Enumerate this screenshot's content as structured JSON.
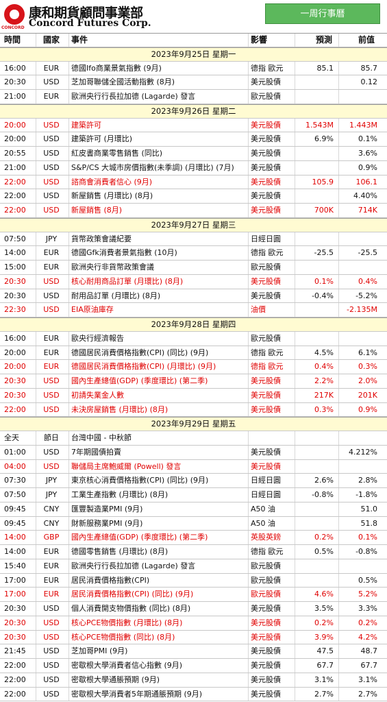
{
  "header": {
    "logo_small": "CONCORD",
    "logo_cn": "康和期貨顧問事業部",
    "logo_en": "Concord Futures Corp.",
    "button": "一周行事曆"
  },
  "columns": [
    "時間",
    "國家",
    "事件",
    "影響",
    "預測",
    "前值"
  ],
  "days": [
    {
      "date": "2023年9月25日 星期一",
      "rows": [
        {
          "time": "16:00",
          "country": "EUR",
          "event": "德國Ifo商業景氣指數 (9月)",
          "impact": "德指 歐元",
          "forecast": "85.1",
          "previous": "85.7"
        },
        {
          "time": "20:30",
          "country": "USD",
          "event": "芝加哥聯儲全國活動指數 (8月)",
          "impact": "美元股債",
          "previous": "0.12"
        },
        {
          "time": "21:00",
          "country": "EUR",
          "event": "歐洲央行行長拉加德 (Lagarde) 發言",
          "impact": "歐元股債"
        }
      ]
    },
    {
      "date": "2023年9月26日 星期二",
      "rows": [
        {
          "time": "20:00",
          "country": "USD",
          "event": "建築許可",
          "impact": "美元股債",
          "forecast": "1.543M",
          "previous": "1.443M",
          "highlight": true
        },
        {
          "time": "20:00",
          "country": "USD",
          "event": "建築許可 (月環比)",
          "impact": "美元股債",
          "forecast": "6.9%",
          "previous": "0.1%"
        },
        {
          "time": "20:55",
          "country": "USD",
          "event": "紅皮書商業零售銷售 (同比)",
          "impact": "美元股債",
          "previous": "3.6%"
        },
        {
          "time": "21:00",
          "country": "USD",
          "event": "S&P/CS 大城市房價指數(未季調) (月環比) (7月)",
          "impact": "美元股債",
          "previous": "0.9%"
        },
        {
          "time": "22:00",
          "country": "USD",
          "event": "諮商會消費者信心 (9月)",
          "impact": "美元股債",
          "forecast": "105.9",
          "previous": "106.1",
          "highlight": true
        },
        {
          "time": "22:00",
          "country": "USD",
          "event": "新屋銷售 (月環比) (8月)",
          "impact": "美元股債",
          "previous": "4.40%"
        },
        {
          "time": "22:00",
          "country": "USD",
          "event": "新屋銷售 (8月)",
          "impact": "美元股債",
          "forecast": "700K",
          "previous": "714K",
          "highlight": true
        }
      ]
    },
    {
      "date": "2023年9月27日 星期三",
      "rows": [
        {
          "time": "07:50",
          "country": "JPY",
          "event": "貨幣政策會議紀要",
          "impact": "日經日圓"
        },
        {
          "time": "14:00",
          "country": "EUR",
          "event": "德國Gfk消費者景氣指數 (10月)",
          "impact": "德指 歐元",
          "forecast": "-25.5",
          "previous": "-25.5"
        },
        {
          "time": "15:00",
          "country": "EUR",
          "event": "歐洲央行非貨幣政策會議",
          "impact": "歐元股債"
        },
        {
          "time": "20:30",
          "country": "USD",
          "event": "核心耐用商品訂單 (月環比) (8月)",
          "impact": "美元股債",
          "forecast": "0.1%",
          "previous": "0.4%",
          "highlight": true
        },
        {
          "time": "20:30",
          "country": "USD",
          "event": "耐用品訂單 (月環比) (8月)",
          "impact": "美元股債",
          "forecast": "-0.4%",
          "previous": "-5.2%"
        },
        {
          "time": "22:30",
          "country": "USD",
          "event": "EIA原油庫存",
          "impact": "油價",
          "previous": "-2.135M",
          "highlight": true
        }
      ]
    },
    {
      "date": "2023年9月28日 星期四",
      "rows": [
        {
          "time": "16:00",
          "country": "EUR",
          "event": "歐央行經濟報告",
          "impact": "歐元股債"
        },
        {
          "time": "20:00",
          "country": "EUR",
          "event": "德國居民消費價格指數(CPI) (同比) (9月)",
          "impact": "德指 歐元",
          "forecast": "4.5%",
          "previous": "6.1%"
        },
        {
          "time": "20:00",
          "country": "EUR",
          "event": "德國居民消費價格指數(CPI) (月環比) (9月)",
          "impact": "德指 歐元",
          "forecast": "0.4%",
          "previous": "0.3%",
          "highlight": true
        },
        {
          "time": "20:30",
          "country": "USD",
          "event": "國內生產總值(GDP) (季度環比) (第二季)",
          "impact": "美元股債",
          "forecast": "2.2%",
          "previous": "2.0%",
          "highlight": true
        },
        {
          "time": "20:30",
          "country": "USD",
          "event": "初請失業金人數",
          "impact": "美元股債",
          "forecast": "217K",
          "previous": "201K",
          "highlight": true
        },
        {
          "time": "22:00",
          "country": "USD",
          "event": "未決房屋銷售 (月環比) (8月)",
          "impact": "美元股債",
          "forecast": "0.3%",
          "previous": "0.9%",
          "highlight": true
        }
      ]
    },
    {
      "date": "2023年9月29日 星期五",
      "rows": [
        {
          "time": "全天",
          "country": "節日",
          "event": "台灣中國 - 中秋節"
        },
        {
          "time": "01:00",
          "country": "USD",
          "event": "7年期國債拍賣",
          "impact": "美元股債",
          "previous": "4.212%"
        },
        {
          "time": "04:00",
          "country": "USD",
          "event": "聯儲局主席鮑威爾 (Powell) 發言",
          "impact": "美元股債",
          "highlight": true
        },
        {
          "time": "07:30",
          "country": "JPY",
          "event": "東京核心消費價格指數(CPI) (同比) (9月)",
          "impact": "日經日圓",
          "forecast": "2.6%",
          "previous": "2.8%"
        },
        {
          "time": "07:50",
          "country": "JPY",
          "event": "工業生產指數 (月環比) (8月)",
          "impact": "日經日圓",
          "forecast": "-0.8%",
          "previous": "-1.8%"
        },
        {
          "time": "09:45",
          "country": "CNY",
          "event": "匯豐製造業PMI (9月)",
          "impact": "A50 油",
          "previous": "51.0"
        },
        {
          "time": "09:45",
          "country": "CNY",
          "event": "財新服務業PMI (9月)",
          "impact": "A50 油",
          "previous": "51.8"
        },
        {
          "time": "14:00",
          "country": "GBP",
          "event": "國內生產總值(GDP) (季度環比) (第二季)",
          "impact": "英股英鎊",
          "forecast": "0.2%",
          "previous": "0.1%",
          "highlight": true
        },
        {
          "time": "14:00",
          "country": "EUR",
          "event": "德國零售銷售 (月環比) (8月)",
          "impact": "德指 歐元",
          "forecast": "0.5%",
          "previous": "-0.8%"
        },
        {
          "time": "15:40",
          "country": "EUR",
          "event": "歐洲央行行長拉加德 (Lagarde) 發言",
          "impact": "歐元股債"
        },
        {
          "time": "17:00",
          "country": "EUR",
          "event": "居民消費價格指數(CPI)",
          "impact": "歐元股債",
          "previous": "0.5%"
        },
        {
          "time": "17:00",
          "country": "EUR",
          "event": "居民消費價格指數(CPI) (同比) (9月)",
          "impact": "歐元股債",
          "forecast": "4.6%",
          "previous": "5.2%",
          "highlight": true
        },
        {
          "time": "20:30",
          "country": "USD",
          "event": "個人消費開支物價指數 (同比) (8月)",
          "impact": "美元股債",
          "forecast": "3.5%",
          "previous": "3.3%"
        },
        {
          "time": "20:30",
          "country": "USD",
          "event": "核心PCE物價指數 (月環比) (8月)",
          "impact": "美元股債",
          "forecast": "0.2%",
          "previous": "0.2%",
          "highlight": true
        },
        {
          "time": "20:30",
          "country": "USD",
          "event": "核心PCE物價指數 (同比) (8月)",
          "impact": "美元股債",
          "forecast": "3.9%",
          "previous": "4.2%",
          "highlight": true
        },
        {
          "time": "21:45",
          "country": "USD",
          "event": "芝加哥PMI (9月)",
          "impact": "美元股債",
          "forecast": "47.5",
          "previous": "48.7"
        },
        {
          "time": "22:00",
          "country": "USD",
          "event": "密歇根大學消費者信心指數 (9月)",
          "impact": "美元股債",
          "forecast": "67.7",
          "previous": "67.7"
        },
        {
          "time": "22:00",
          "country": "USD",
          "event": "密歇根大學通脹預期 (9月)",
          "impact": "美元股債",
          "forecast": "3.1%",
          "previous": "3.1%"
        },
        {
          "time": "22:00",
          "country": "USD",
          "event": "密歇根大學消費者5年期通脹預期 (9月)",
          "impact": "美元股債",
          "forecast": "2.7%",
          "previous": "2.7%"
        }
      ]
    }
  ]
}
